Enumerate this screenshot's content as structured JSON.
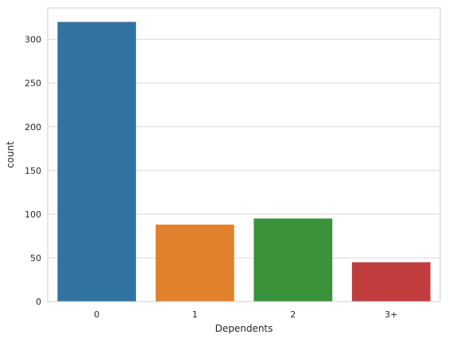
{
  "chart_data": {
    "type": "bar",
    "categories": [
      "0",
      "1",
      "2",
      "3+"
    ],
    "values": [
      320,
      88,
      95,
      45
    ],
    "colors": [
      "#3274a1",
      "#e1812c",
      "#3a923a",
      "#c03d3e"
    ],
    "title": "",
    "xlabel": "Dependents",
    "ylabel": "count",
    "ylim": [
      0,
      336
    ],
    "yticks": [
      0,
      50,
      100,
      150,
      200,
      250,
      300
    ],
    "grid": "y",
    "legend": "none"
  }
}
